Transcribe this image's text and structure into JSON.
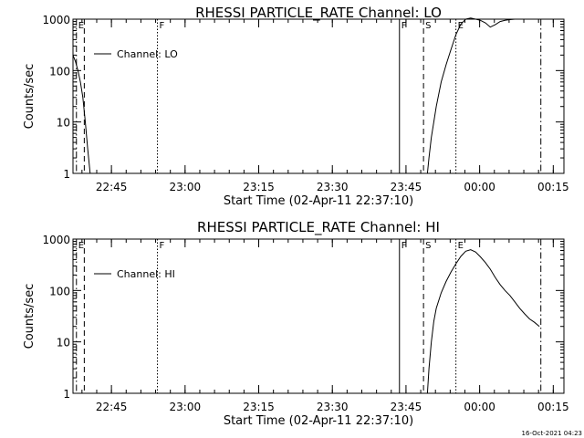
{
  "chart_data": [
    {
      "type": "line",
      "title": "RHESSI PARTICLE_RATE Channel: LO",
      "xlabel": "Start Time (02-Apr-11 22:37:10)",
      "ylabel": "Counts/sec",
      "yscale": "log",
      "ylim": [
        1,
        1000
      ],
      "yticks": [
        "1",
        "10",
        "100",
        "1000"
      ],
      "xlim_minutes": [
        0,
        100
      ],
      "xticks": [
        "22:45",
        "23:00",
        "23:15",
        "23:30",
        "23:45",
        "00:00",
        "00:15"
      ],
      "legend": {
        "label": "Channel: LO",
        "placement": "top-left"
      },
      "markers": [
        {
          "label": "E",
          "minute": 0.7,
          "style": "dashdot"
        },
        {
          "label": "",
          "minute": 2.3,
          "style": "dashed"
        },
        {
          "label": "F",
          "minute": 17.2,
          "style": "dotted"
        },
        {
          "label": "F",
          "minute": 66.5,
          "style": "solid"
        },
        {
          "label": "S",
          "minute": 71.4,
          "style": "dashed"
        },
        {
          "label": "E",
          "minute": 78.0,
          "style": "dotted"
        },
        {
          "label": "",
          "minute": 95.3,
          "style": "dashdot"
        }
      ],
      "series": [
        {
          "name": "Channel: LO",
          "segments": [
            {
              "x": [
                0,
                0.5,
                1.0,
                1.5,
                2.0,
                2.5,
                3.0,
                3.5
              ],
              "y": [
                200,
                150,
                100,
                60,
                30,
                10,
                3,
                1
              ]
            },
            {
              "x": [
                72.2,
                72.5,
                73.0,
                73.5,
                74.0,
                75.0,
                76.0,
                77.0,
                78.0,
                79.0,
                80.0,
                81.0,
                82.0,
                83.0,
                84.0,
                85.0,
                86.0,
                87.0,
                88.0,
                89.0,
                90.0,
                91.0,
                92.0,
                93.0,
                94.0,
                95.0
              ],
              "y": [
                1,
                2,
                5,
                10,
                20,
                60,
                130,
                260,
                500,
                800,
                1000,
                1050,
                1000,
                950,
                850,
                700,
                780,
                900,
                950,
                980,
                1000,
                1000,
                1000,
                1000,
                1000,
                1000
              ]
            }
          ]
        }
      ]
    },
    {
      "type": "line",
      "title": "RHESSI PARTICLE_RATE Channel: HI",
      "xlabel": "Start Time (02-Apr-11 22:37:10)",
      "ylabel": "Counts/sec",
      "yscale": "log",
      "ylim": [
        1,
        1000
      ],
      "yticks": [
        "1",
        "10",
        "100",
        "1000"
      ],
      "xlim_minutes": [
        0,
        100
      ],
      "xticks": [
        "22:45",
        "23:00",
        "23:15",
        "23:30",
        "23:45",
        "00:00",
        "00:15"
      ],
      "legend": {
        "label": "Channel: HI",
        "placement": "top-left"
      },
      "markers": [
        {
          "label": "E",
          "minute": 0.7,
          "style": "dashdot"
        },
        {
          "label": "",
          "minute": 2.3,
          "style": "dashed"
        },
        {
          "label": "F",
          "minute": 17.2,
          "style": "dotted"
        },
        {
          "label": "F",
          "minute": 66.5,
          "style": "solid"
        },
        {
          "label": "S",
          "minute": 71.4,
          "style": "dashed"
        },
        {
          "label": "E",
          "minute": 78.0,
          "style": "dotted"
        },
        {
          "label": "",
          "minute": 95.3,
          "style": "dashdot"
        }
      ],
      "series": [
        {
          "name": "Channel: HI",
          "segments": [
            {
              "x": [
                72.2,
                72.5,
                73.0,
                73.5,
                74.0,
                75.0,
                76.0,
                77.0,
                78.0,
                79.0,
                80.0,
                81.0,
                82.0,
                83.0,
                84.0,
                85.0,
                86.0,
                87.0,
                88.0,
                89.0,
                90.0,
                91.0,
                92.0,
                93.0,
                94.0,
                95.0
              ],
              "y": [
                1,
                3,
                10,
                25,
                45,
                90,
                150,
                230,
                330,
                460,
                580,
                620,
                560,
                450,
                350,
                260,
                180,
                130,
                100,
                80,
                60,
                45,
                35,
                28,
                24,
                20
              ]
            }
          ]
        }
      ]
    }
  ],
  "footer": {
    "timestamp": "16-Oct-2021 04:23"
  }
}
